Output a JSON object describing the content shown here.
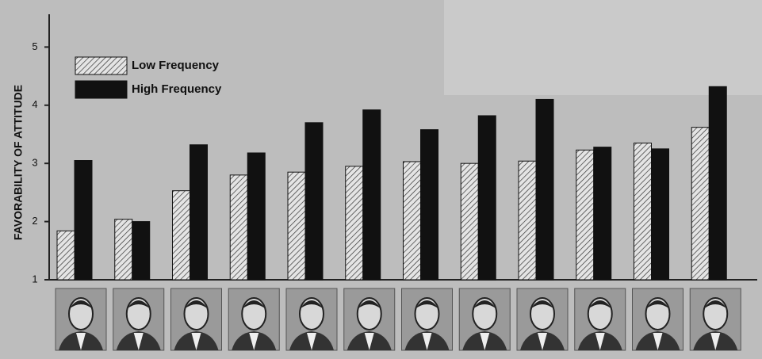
{
  "chart_data": {
    "type": "bar",
    "y_label": "FAVORABILITY OF ATTITUDE",
    "categories": [
      null,
      null,
      null,
      null,
      null,
      null,
      null,
      null,
      null,
      null,
      null,
      null
    ],
    "series": [
      {
        "name": "Low Frequency",
        "color": "#cfcfcf",
        "hatch": true,
        "values": [
          1.84,
          2.04,
          2.53,
          2.8,
          2.85,
          2.95,
          3.03,
          3.0,
          3.04,
          3.23,
          3.35,
          3.62
        ]
      },
      {
        "name": "High Frequency",
        "color": "#111111",
        "hatch": false,
        "values": [
          3.05,
          2.0,
          3.32,
          3.18,
          3.7,
          3.92,
          3.58,
          3.82,
          4.1,
          3.28,
          3.25,
          4.32
        ]
      }
    ],
    "ylim": [
      1,
      5.4
    ],
    "yticks": [
      1,
      2,
      3,
      4,
      5
    ],
    "grid": false
  }
}
